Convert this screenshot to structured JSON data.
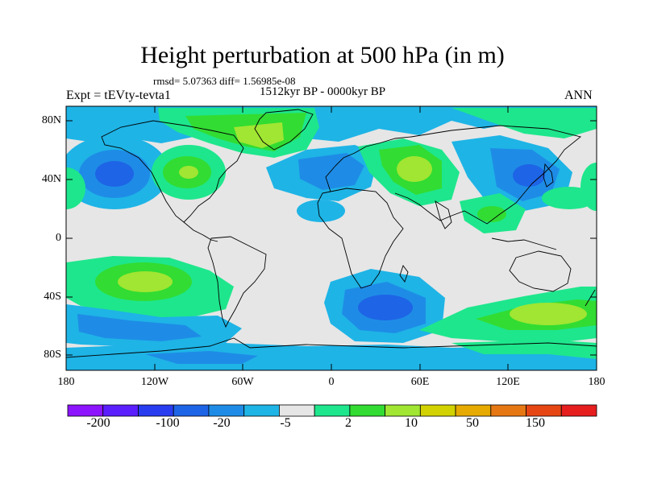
{
  "title": "Height perturbation at 500 hPa (in m)",
  "stats": "rmsd= 5.07363 diff= 1.56985e-08",
  "subtitle": "1512kyr BP - 0000kyr BP",
  "experiment": "Expt = tEVty-tevta1",
  "season": "ANN",
  "lat_labels": [
    "80N",
    "40N",
    "0",
    "40S",
    "80S"
  ],
  "lon_labels": [
    "180",
    "120W",
    "60W",
    "0",
    "60E",
    "120E",
    "180"
  ],
  "colorbar": {
    "labels": [
      "-200",
      "-100",
      "-20",
      "-5",
      "2",
      "10",
      "50",
      "150"
    ],
    "colors": [
      "#8c14ff",
      "#5a1eff",
      "#283cf0",
      "#1e64e6",
      "#1e8ce6",
      "#1eb4e6",
      "#e6e6e6",
      "#1ee68c",
      "#32dc32",
      "#a0e632",
      "#d2d200",
      "#e6aa00",
      "#e67814",
      "#e64614",
      "#e61e1e"
    ]
  },
  "map_colors": {
    "neutral": "#e6e6e6",
    "light_blue": "#1eb4e6",
    "mid_blue": "#1e8ce6",
    "blue": "#1e64e6",
    "green": "#1ee68c",
    "lime": "#32dc32",
    "yellow_green": "#a0e632"
  }
}
